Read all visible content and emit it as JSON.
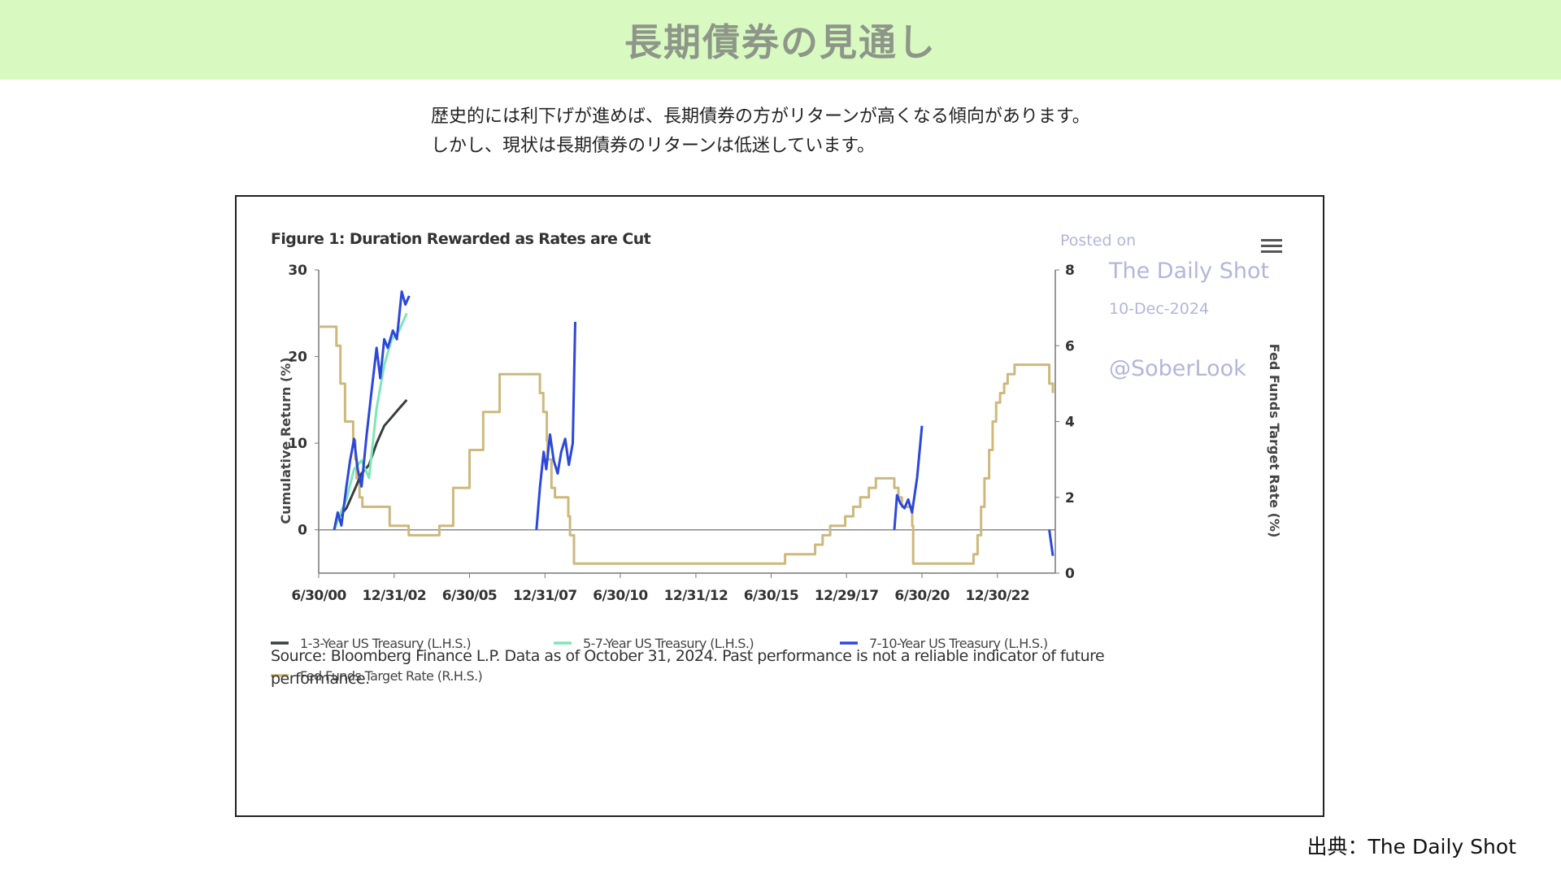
{
  "banner": {
    "title": "長期債券の見通し",
    "bg_color": "#d8fac0"
  },
  "intro": {
    "line1": "歴史的には利下げが進めば、長期債券の方がリターンが高くなる傾向があります。",
    "line2": "しかし、現状は長期債券のリターンは低迷しています。"
  },
  "footer": {
    "credit": "出典：The Daily Shot"
  },
  "chart_data": {
    "type": "line",
    "title": "Figure 1: Duration Rewarded as Rates are Cut",
    "ylabel": "Cumulative Return (%)",
    "y2label": "Fed Funds Target Rate (%)",
    "ylim": [
      -5,
      30
    ],
    "y2lim": [
      0,
      8
    ],
    "xlim": [
      "2000-06-30",
      "2024-11-30"
    ],
    "yticks": [
      "30",
      "20",
      "10",
      "0"
    ],
    "yticks_values": [
      30,
      20,
      10,
      0
    ],
    "y2ticks": [
      "8",
      "6",
      "4",
      "2",
      "0"
    ],
    "y2ticks_values": [
      8,
      6,
      4,
      2,
      0
    ],
    "xticks": [
      "6/30/00",
      "12/31/02",
      "6/30/05",
      "12/31/07",
      "6/30/10",
      "12/31/12",
      "6/30/15",
      "12/29/17",
      "6/30/20",
      "12/30/22"
    ],
    "xticks_values": [
      "2000-06-30",
      "2002-12-31",
      "2005-06-30",
      "2007-12-31",
      "2010-06-30",
      "2012-12-31",
      "2015-06-30",
      "2017-12-29",
      "2020-06-30",
      "2022-12-30"
    ],
    "grid": false,
    "legend_position": "bottom",
    "source": "Source: Bloomberg Finance L.P. Data as of October 31, 2024. Past performance is not a reliable indicator of future performance.",
    "watermark": {
      "line1": "Posted on",
      "line2": "The Daily Shot",
      "line3": "10-Dec-2024",
      "line4": "@SoberLook"
    },
    "menu_icon": "hamburger-menu-icon",
    "series": [
      {
        "name": "1-3-Year US Treasury (L.H.S.)",
        "axis": "left",
        "color": "#3a3e3c",
        "x": [
          "2001-01-03",
          "2001-03-01",
          "2001-06-01",
          "2001-09-01",
          "2001-12-01",
          "2002-03-01",
          "2002-06-01",
          "2002-09-01",
          "2002-12-01",
          "2003-03-01",
          "2003-06-01"
        ],
        "y": [
          0,
          1.5,
          2.5,
          4.5,
          6.5,
          7.5,
          10,
          12,
          13,
          14,
          15
        ]
      },
      {
        "name": "5-7-Year US Treasury (L.H.S.)",
        "axis": "left",
        "color": "#7ee6b8",
        "x": [
          "2001-01-03",
          "2001-03-01",
          "2001-06-01",
          "2001-09-01",
          "2001-12-01",
          "2002-03-01",
          "2002-06-01",
          "2002-09-01",
          "2002-12-01",
          "2003-03-01",
          "2003-06-01"
        ],
        "y": [
          0,
          1.5,
          3.5,
          7,
          8,
          6,
          14,
          19,
          22,
          23,
          25
        ]
      },
      {
        "name": "7-10-Year US Treasury (L.H.S.)",
        "axis": "left",
        "color": "#2b48d9",
        "segments": [
          {
            "x": [
              "2001-01-03",
              "2001-02-15",
              "2001-04-01",
              "2001-06-01",
              "2001-07-15",
              "2001-09-01",
              "2001-10-15",
              "2001-12-01",
              "2002-02-01",
              "2002-04-01",
              "2002-06-01",
              "2002-07-15",
              "2002-09-01",
              "2002-10-15",
              "2002-12-15",
              "2003-02-01",
              "2003-04-01",
              "2003-05-15",
              "2003-07-01"
            ],
            "y": [
              0,
              2,
              0.5,
              5,
              8,
              10.5,
              7,
              5,
              11,
              16,
              21,
              17.5,
              22,
              21,
              23,
              22,
              27.5,
              26,
              27
            ]
          },
          {
            "x": [
              "2007-09-18",
              "2007-11-01",
              "2007-12-15",
              "2008-01-15",
              "2008-03-01",
              "2008-04-15",
              "2008-06-01",
              "2008-07-15",
              "2008-09-01",
              "2008-10-15",
              "2008-12-01",
              "2008-12-31"
            ],
            "y": [
              0,
              5,
              9,
              7,
              11,
              8,
              6.5,
              9,
              10.5,
              7.5,
              10,
              24
            ]
          },
          {
            "x": [
              "2019-07-31",
              "2019-09-01",
              "2019-10-15",
              "2019-12-01",
              "2020-01-15",
              "2020-03-01",
              "2020-05-01",
              "2020-06-30"
            ],
            "y": [
              0,
              4,
              3,
              2.5,
              3.5,
              2,
              6,
              12
            ]
          },
          {
            "x": [
              "2024-09-18",
              "2024-10-10",
              "2024-10-31"
            ],
            "y": [
              0,
              -1.5,
              -3
            ]
          }
        ]
      },
      {
        "name": "Fed Funds Target Rate (R.H.S.)",
        "axis": "right",
        "color": "#cdb97e",
        "x": [
          "2000-06-30",
          "2000-12-31",
          "2001-01-31",
          "2001-03-20",
          "2001-05-15",
          "2001-08-21",
          "2001-09-17",
          "2001-10-02",
          "2001-11-06",
          "2001-12-11",
          "2002-11-06",
          "2003-06-25",
          "2004-06-30",
          "2004-12-14",
          "2005-06-30",
          "2005-12-13",
          "2006-06-29",
          "2007-09-18",
          "2007-10-31",
          "2007-12-11",
          "2008-01-22",
          "2008-01-30",
          "2008-03-18",
          "2008-04-30",
          "2008-10-08",
          "2008-10-29",
          "2008-12-16",
          "2015-12-16",
          "2016-12-14",
          "2017-03-15",
          "2017-06-14",
          "2017-12-13",
          "2018-03-21",
          "2018-06-13",
          "2018-09-26",
          "2018-12-19",
          "2019-07-31",
          "2019-09-18",
          "2019-10-30",
          "2020-03-03",
          "2020-03-15",
          "2022-03-16",
          "2022-05-04",
          "2022-06-15",
          "2022-07-27",
          "2022-09-21",
          "2022-11-02",
          "2022-12-14",
          "2023-02-01",
          "2023-03-22",
          "2023-05-03",
          "2023-07-26",
          "2024-09-18",
          "2024-10-31"
        ],
        "y": [
          6.5,
          6.5,
          6.0,
          5.0,
          4.0,
          3.5,
          3.0,
          2.5,
          2.0,
          1.75,
          1.25,
          1.0,
          1.25,
          2.25,
          3.25,
          4.25,
          5.25,
          5.25,
          4.75,
          4.25,
          3.5,
          3.0,
          2.25,
          2.0,
          1.5,
          1.0,
          0.25,
          0.5,
          0.75,
          1.0,
          1.25,
          1.5,
          1.75,
          2.0,
          2.25,
          2.5,
          2.25,
          2.0,
          1.75,
          1.25,
          0.25,
          0.5,
          1.0,
          1.75,
          2.5,
          3.25,
          4.0,
          4.5,
          4.75,
          5.0,
          5.25,
          5.5,
          5.0,
          4.75
        ]
      }
    ]
  }
}
